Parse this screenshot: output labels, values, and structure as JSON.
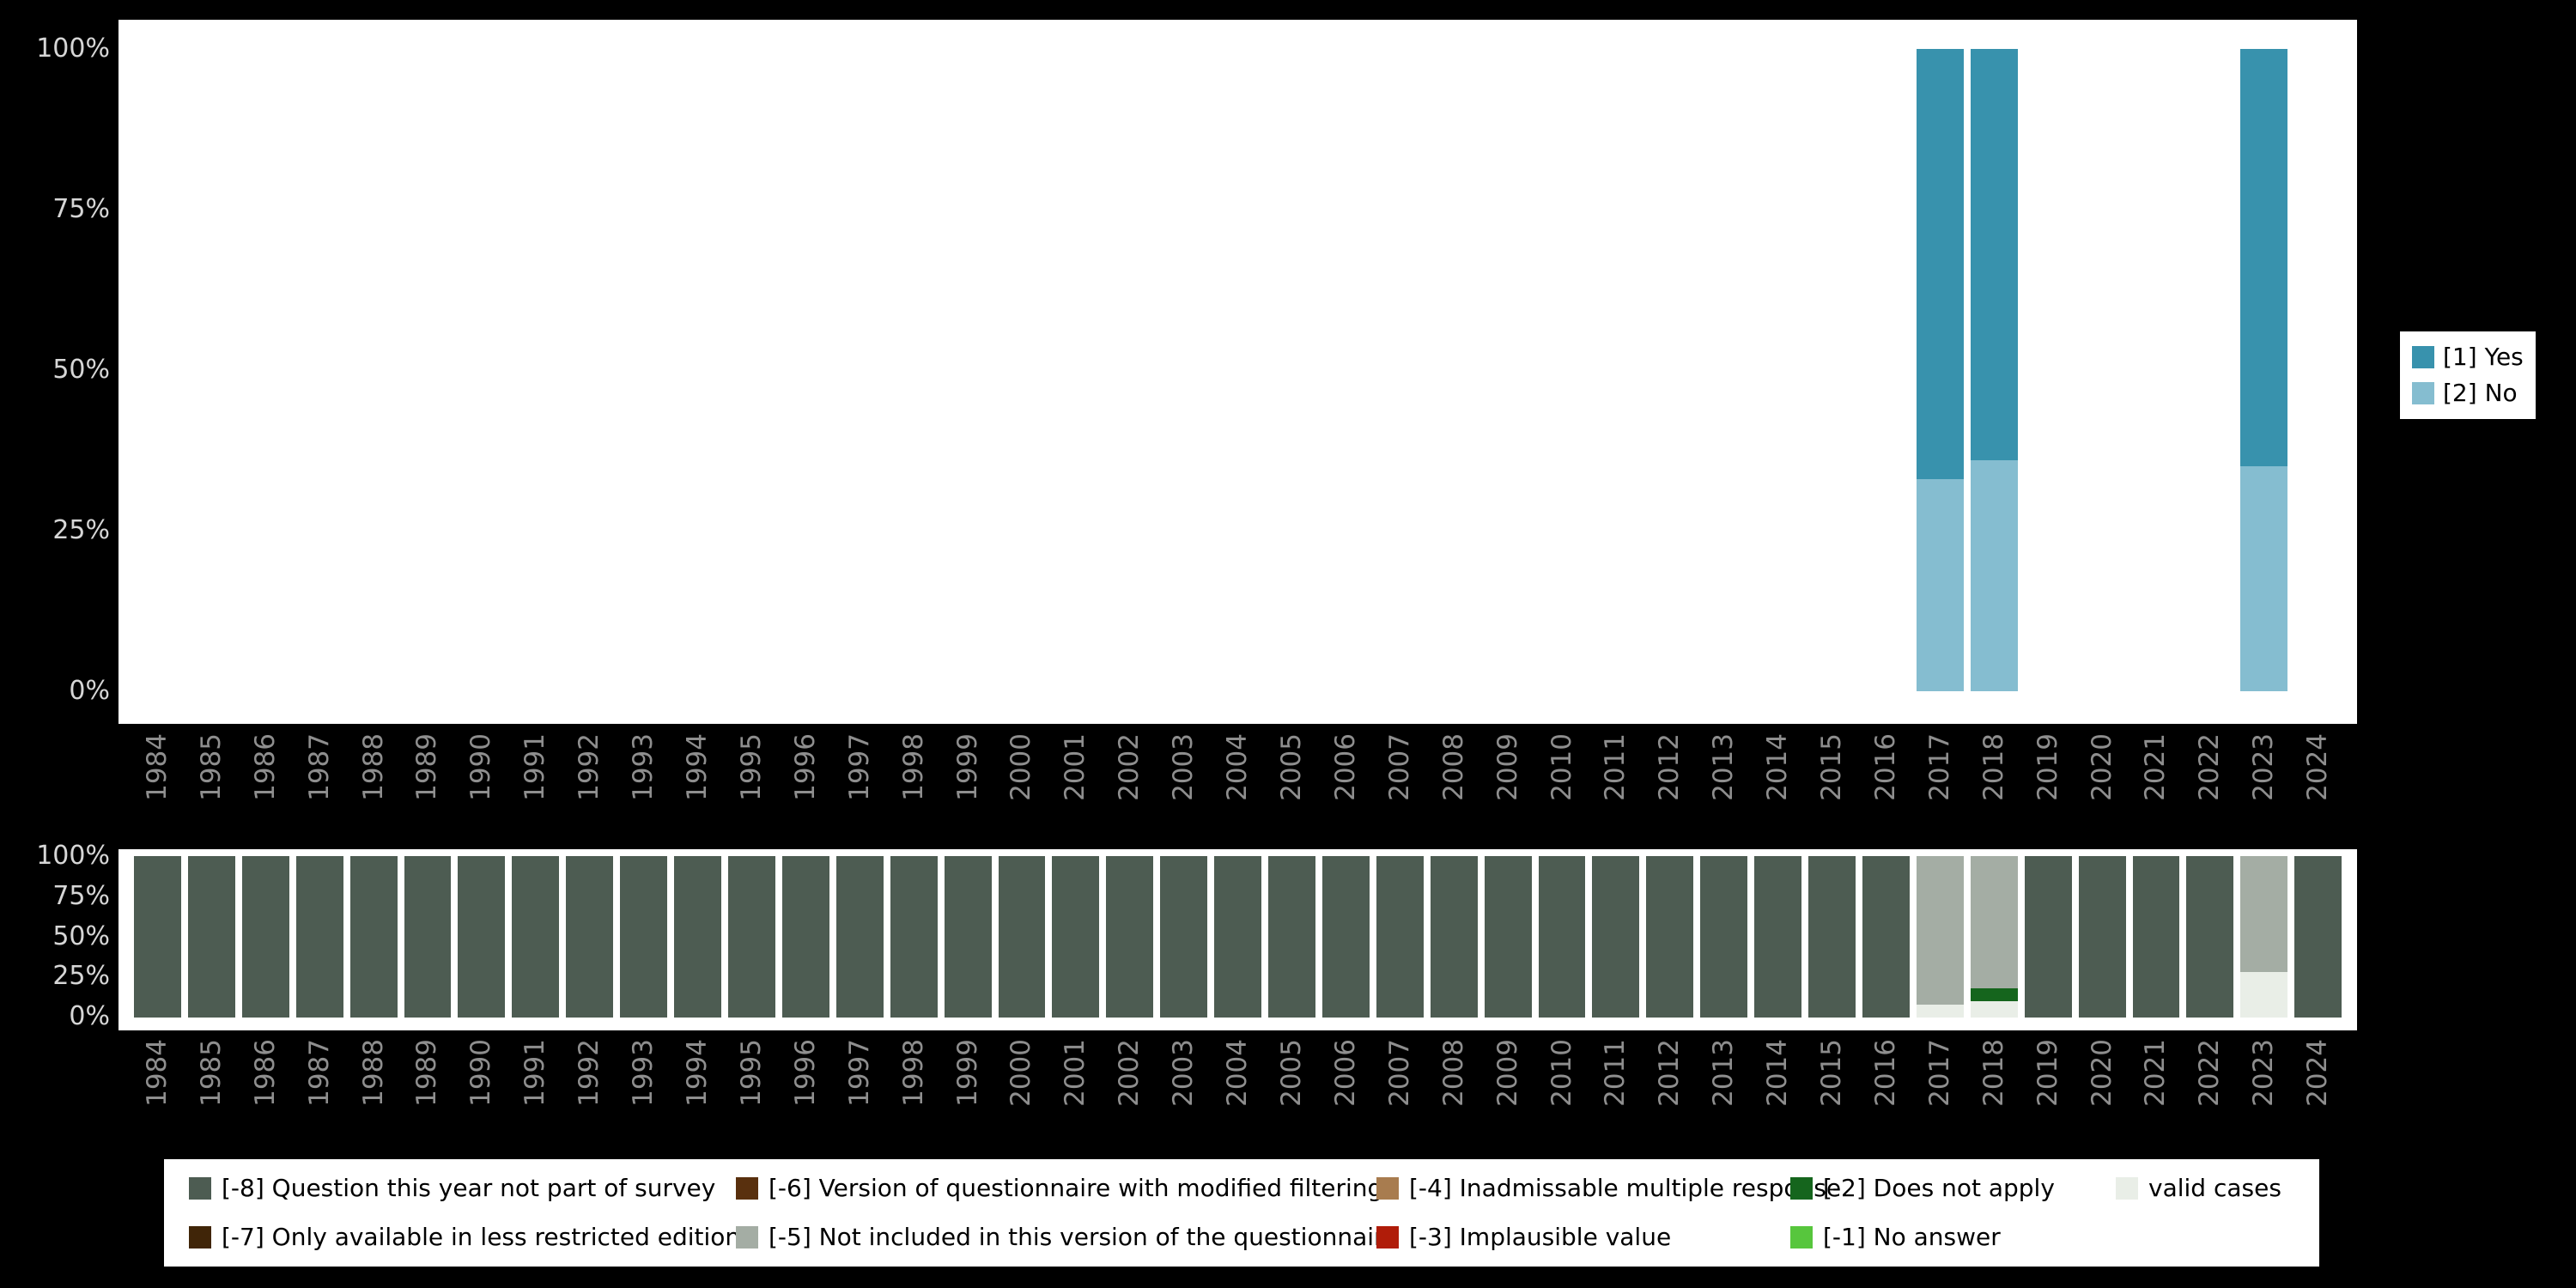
{
  "colors": {
    "background": "#000000",
    "plot_background": "#ffffff",
    "year_axis_text": "#8e8e8e",
    "percent_axis_text": "#d6d6d6",
    "yes": "#3892ad",
    "no": "#85bdd0"
  },
  "chart_data": [
    {
      "id": "top-values-chart",
      "type": "bar",
      "stacked": true,
      "unit": "percent",
      "ylim": [
        0,
        100
      ],
      "y_ticks": [
        "100%",
        "75%",
        "50%",
        "25%",
        "0%"
      ],
      "legend_position": "right",
      "stack_order": "bottom-to-top",
      "categories": [
        "1984",
        "1985",
        "1986",
        "1987",
        "1988",
        "1989",
        "1990",
        "1991",
        "1992",
        "1993",
        "1994",
        "1995",
        "1996",
        "1997",
        "1998",
        "1999",
        "2000",
        "2001",
        "2002",
        "2003",
        "2004",
        "2005",
        "2006",
        "2007",
        "2008",
        "2009",
        "2010",
        "2011",
        "2012",
        "2013",
        "2014",
        "2015",
        "2016",
        "2017",
        "2018",
        "2019",
        "2020",
        "2021",
        "2022",
        "2023",
        "2024"
      ],
      "series": [
        {
          "name": "[2] No",
          "color": "#85bdd0",
          "values": [
            0,
            0,
            0,
            0,
            0,
            0,
            0,
            0,
            0,
            0,
            0,
            0,
            0,
            0,
            0,
            0,
            0,
            0,
            0,
            0,
            0,
            0,
            0,
            0,
            0,
            0,
            0,
            0,
            0,
            0,
            0,
            0,
            0,
            33,
            36,
            0,
            0,
            0,
            0,
            35,
            0
          ]
        },
        {
          "name": "[1] Yes",
          "color": "#3892ad",
          "values": [
            0,
            0,
            0,
            0,
            0,
            0,
            0,
            0,
            0,
            0,
            0,
            0,
            0,
            0,
            0,
            0,
            0,
            0,
            0,
            0,
            0,
            0,
            0,
            0,
            0,
            0,
            0,
            0,
            0,
            0,
            0,
            0,
            0,
            67,
            64,
            0,
            0,
            0,
            0,
            65,
            0
          ]
        }
      ]
    },
    {
      "id": "bottom-missing-values-chart",
      "type": "bar",
      "stacked": true,
      "unit": "percent",
      "ylim": [
        0,
        100
      ],
      "y_ticks": [
        "100%",
        "75%",
        "50%",
        "25%",
        "0%"
      ],
      "legend_position": "bottom",
      "stack_order": "bottom-to-top",
      "categories": [
        "1984",
        "1985",
        "1986",
        "1987",
        "1988",
        "1989",
        "1990",
        "1991",
        "1992",
        "1993",
        "1994",
        "1995",
        "1996",
        "1997",
        "1998",
        "1999",
        "2000",
        "2001",
        "2002",
        "2003",
        "2004",
        "2005",
        "2006",
        "2007",
        "2008",
        "2009",
        "2010",
        "2011",
        "2012",
        "2013",
        "2014",
        "2015",
        "2016",
        "2017",
        "2018",
        "2019",
        "2020",
        "2021",
        "2022",
        "2023",
        "2024"
      ],
      "series": [
        {
          "name": "valid cases",
          "color": "#e9eee7",
          "values": [
            0,
            0,
            0,
            0,
            0,
            0,
            0,
            0,
            0,
            0,
            0,
            0,
            0,
            0,
            0,
            0,
            0,
            0,
            0,
            0,
            0,
            0,
            0,
            0,
            0,
            0,
            0,
            0,
            0,
            0,
            0,
            0,
            0,
            8,
            10,
            0,
            0,
            0,
            0,
            28,
            0
          ]
        },
        {
          "name": "[-2] Does not apply",
          "color": "#15651d",
          "values": [
            0,
            0,
            0,
            0,
            0,
            0,
            0,
            0,
            0,
            0,
            0,
            0,
            0,
            0,
            0,
            0,
            0,
            0,
            0,
            0,
            0,
            0,
            0,
            0,
            0,
            0,
            0,
            0,
            0,
            0,
            0,
            0,
            0,
            0,
            8,
            0,
            0,
            0,
            0,
            0,
            0
          ]
        },
        {
          "name": "[-5] Not included in this version of the questionnaire",
          "color": "#a4ada4",
          "values": [
            0,
            0,
            0,
            0,
            0,
            0,
            0,
            0,
            0,
            0,
            0,
            0,
            0,
            0,
            0,
            0,
            0,
            0,
            0,
            0,
            0,
            0,
            0,
            0,
            0,
            0,
            0,
            0,
            0,
            0,
            0,
            0,
            0,
            92,
            82,
            0,
            0,
            0,
            0,
            72,
            0
          ]
        },
        {
          "name": "[-8] Question this year not part of survey",
          "color": "#4d5c52",
          "values": [
            100,
            100,
            100,
            100,
            100,
            100,
            100,
            100,
            100,
            100,
            100,
            100,
            100,
            100,
            100,
            100,
            100,
            100,
            100,
            100,
            100,
            100,
            100,
            100,
            100,
            100,
            100,
            100,
            100,
            100,
            100,
            100,
            100,
            0,
            0,
            100,
            100,
            100,
            100,
            0,
            100
          ]
        }
      ]
    }
  ],
  "legend_top": {
    "items": [
      {
        "label": "[1] Yes",
        "color": "#3892ad"
      },
      {
        "label": "[2] No",
        "color": "#85bdd0"
      }
    ]
  },
  "legend_bottom": {
    "items": [
      {
        "label": "[-8] Question this year not part of survey",
        "color": "#4d5c52"
      },
      {
        "label": "[-7] Only available in less restricted edition",
        "color": "#402508"
      },
      {
        "label": "[-6] Version of questionnaire with modified filtering",
        "color": "#59300e"
      },
      {
        "label": "[-5] Not included in this version of the questionnaire",
        "color": "#a4ada4"
      },
      {
        "label": "[-4] Inadmissable multiple response",
        "color": "#a87c4f"
      },
      {
        "label": "[-3] Implausible value",
        "color": "#b01c09"
      },
      {
        "label": "[-2] Does not apply",
        "color": "#15651d"
      },
      {
        "label": "[-1] No answer",
        "color": "#57c63d"
      },
      {
        "label": "valid cases",
        "color": "#e9eee7"
      }
    ]
  }
}
